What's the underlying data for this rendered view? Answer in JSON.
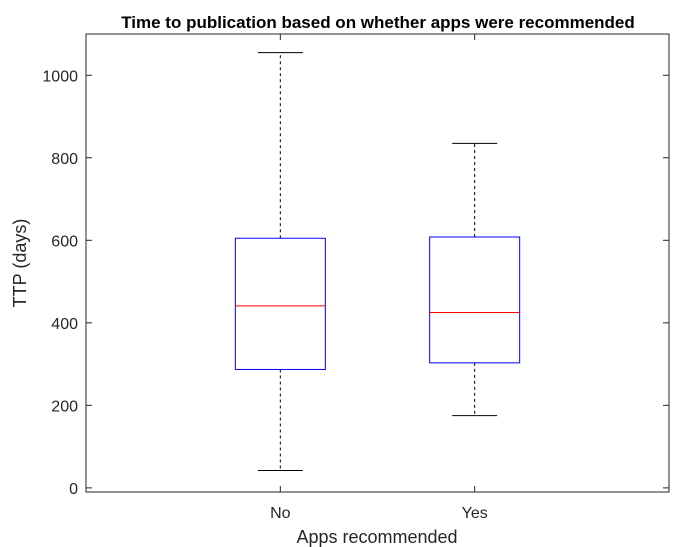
{
  "chart_data": {
    "type": "boxplot",
    "title": "Time to publication based on whether apps were recommended",
    "xlabel": "Apps recommended",
    "ylabel": "TTP (days)",
    "categories": [
      "No",
      "Yes"
    ],
    "boxes": [
      {
        "category": "No",
        "min": 42,
        "q1": 287,
        "median": 441,
        "q3": 605,
        "max": 1055
      },
      {
        "category": "Yes",
        "min": 175,
        "q1": 303,
        "median": 425,
        "q3": 608,
        "max": 835
      }
    ],
    "ylim": [
      -10,
      1100
    ],
    "yticks": [
      0,
      200,
      400,
      600,
      800,
      1000
    ],
    "grid": false,
    "colors": {
      "box": "#0000ff",
      "median": "#ff0000",
      "whisker": "#000000",
      "axes": "#262626"
    }
  }
}
